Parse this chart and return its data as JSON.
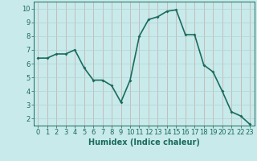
{
  "x": [
    0,
    1,
    2,
    3,
    4,
    5,
    6,
    7,
    8,
    9,
    10,
    11,
    12,
    13,
    14,
    15,
    16,
    17,
    18,
    19,
    20,
    21,
    22,
    23
  ],
  "y": [
    6.4,
    6.4,
    6.7,
    6.7,
    7.0,
    5.7,
    4.8,
    4.8,
    4.4,
    3.2,
    4.8,
    8.0,
    9.2,
    9.4,
    9.8,
    9.9,
    8.1,
    8.1,
    5.9,
    5.4,
    4.0,
    2.5,
    2.2,
    1.6
  ],
  "line_color": "#1a6b5e",
  "marker": "D",
  "marker_size": 2.0,
  "bg_color": "#c8eaea",
  "grid_color": "#b0d8d8",
  "grid_major_color": "#c0c0c0",
  "xlabel": "Humidex (Indice chaleur)",
  "xlabel_fontsize": 7,
  "xlabel_bold": true,
  "xlim": [
    -0.5,
    23.5
  ],
  "ylim": [
    1.5,
    10.5
  ],
  "yticks": [
    2,
    3,
    4,
    5,
    6,
    7,
    8,
    9,
    10
  ],
  "xticks": [
    0,
    1,
    2,
    3,
    4,
    5,
    6,
    7,
    8,
    9,
    10,
    11,
    12,
    13,
    14,
    15,
    16,
    17,
    18,
    19,
    20,
    21,
    22,
    23
  ],
  "tick_fontsize": 6,
  "linewidth": 1.2
}
